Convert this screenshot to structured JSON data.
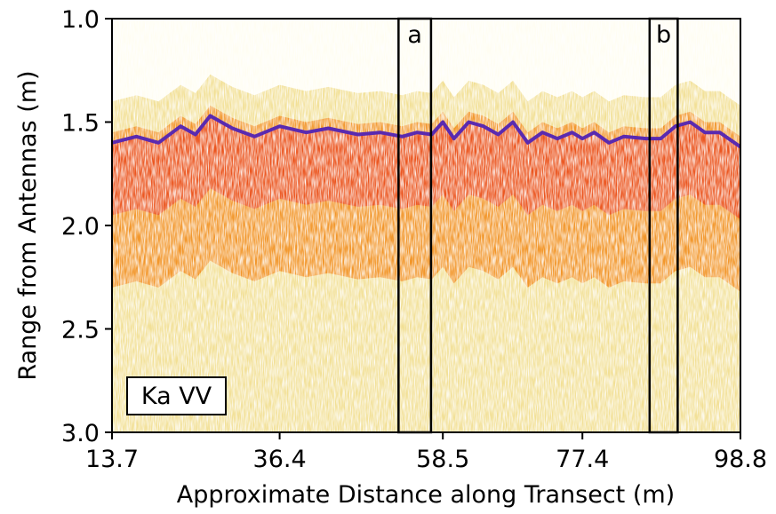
{
  "chart_data": {
    "type": "heatmap",
    "title": "",
    "xlabel": "Approximate Distance along Transect (m)",
    "ylabel": "Range from Antennas (m)",
    "xlim": [
      13.7,
      98.8
    ],
    "ylim": [
      3.0,
      1.0
    ],
    "y_inverted": true,
    "x_ticks": [
      "13.7",
      "36.4",
      "58.5",
      "77.4",
      "98.8"
    ],
    "x_tick_values": [
      13.7,
      36.4,
      58.5,
      77.4,
      98.8
    ],
    "y_ticks": [
      "1.0",
      "1.5",
      "2.0",
      "2.5",
      "3.0"
    ],
    "y_tick_values": [
      1.0,
      1.5,
      2.0,
      2.5,
      3.0
    ],
    "grid": false,
    "colormap": "CMRmap_r (white-yellow-orange-red-purple)",
    "colors": {
      "low": "#fffde6",
      "yellow": "#e8c84a",
      "orange": "#f28a1a",
      "red": "#e8401c",
      "purple": "#5a2ab0"
    },
    "surface_range_profile": {
      "x": [
        13.7,
        17,
        20,
        23,
        25,
        27,
        30,
        33,
        36.4,
        40,
        43,
        47,
        50,
        53,
        55,
        57,
        58.5,
        60,
        62,
        64,
        66,
        68,
        70,
        72,
        74,
        76,
        77.4,
        79,
        81,
        83,
        86,
        88,
        90,
        92,
        94,
        96,
        98.8
      ],
      "y": [
        1.6,
        1.57,
        1.6,
        1.52,
        1.56,
        1.47,
        1.53,
        1.57,
        1.52,
        1.55,
        1.53,
        1.56,
        1.55,
        1.57,
        1.55,
        1.56,
        1.5,
        1.58,
        1.5,
        1.52,
        1.56,
        1.5,
        1.6,
        1.55,
        1.58,
        1.55,
        1.58,
        1.55,
        1.6,
        1.57,
        1.58,
        1.58,
        1.52,
        1.5,
        1.55,
        1.55,
        1.62
      ]
    },
    "annotations": [
      {
        "label": "a",
        "x_range": [
          52.5,
          56.9
        ],
        "y_range": [
          1.0,
          3.0
        ]
      },
      {
        "label": "b",
        "x_range": [
          86.5,
          90.3
        ],
        "y_range": [
          1.0,
          3.0
        ]
      }
    ],
    "inset_label": "Ka VV"
  }
}
